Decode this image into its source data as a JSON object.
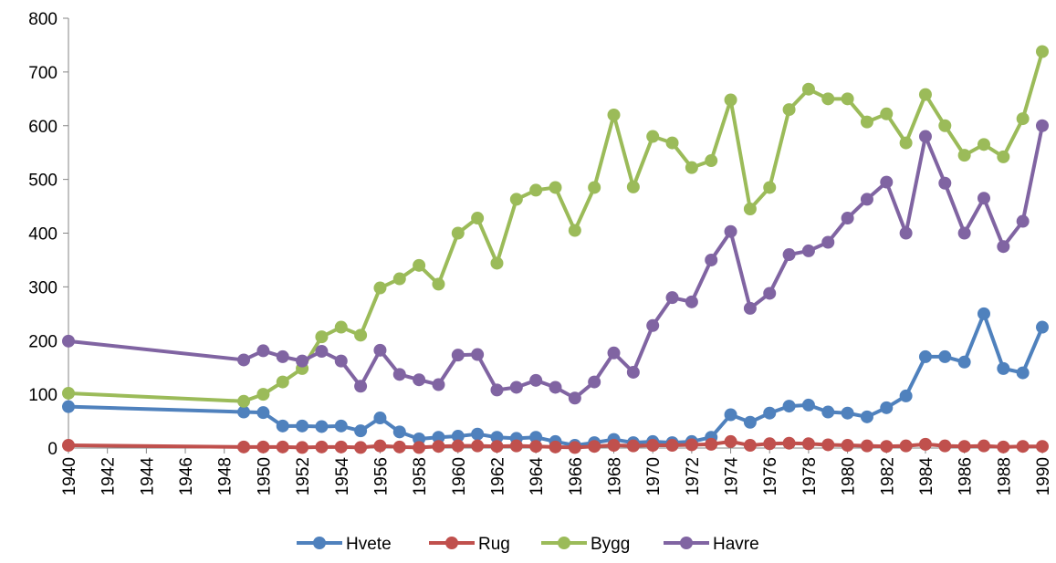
{
  "chart_data": {
    "type": "line",
    "x": [
      1940,
      1949,
      1950,
      1951,
      1952,
      1953,
      1954,
      1955,
      1956,
      1957,
      1958,
      1959,
      1960,
      1961,
      1962,
      1963,
      1964,
      1965,
      1966,
      1967,
      1968,
      1969,
      1970,
      1971,
      1972,
      1973,
      1974,
      1975,
      1976,
      1977,
      1978,
      1979,
      1980,
      1981,
      1982,
      1983,
      1984,
      1985,
      1986,
      1987,
      1988,
      1989,
      1990
    ],
    "series": [
      {
        "name": "Hvete",
        "color": "#4f81bd",
        "values": [
          77,
          67,
          66,
          41,
          41,
          40,
          41,
          32,
          56,
          30,
          17,
          20,
          22,
          26,
          20,
          18,
          20,
          12,
          5,
          10,
          16,
          10,
          12,
          10,
          12,
          20,
          62,
          48,
          65,
          78,
          80,
          67,
          65,
          58,
          75,
          97,
          170,
          170,
          160,
          250,
          148,
          140,
          225
        ]
      },
      {
        "name": "Rug",
        "color": "#c0504d",
        "values": [
          5,
          2,
          2,
          2,
          1,
          2,
          2,
          1,
          4,
          2,
          1,
          3,
          4,
          4,
          3,
          4,
          3,
          2,
          1,
          3,
          5,
          4,
          5,
          5,
          6,
          7,
          12,
          5,
          8,
          9,
          8,
          6,
          5,
          4,
          3,
          4,
          7,
          4,
          3,
          4,
          2,
          3,
          3
        ]
      },
      {
        "name": "Bygg",
        "color": "#9bbb59",
        "values": [
          102,
          87,
          100,
          123,
          148,
          207,
          225,
          210,
          298,
          315,
          340,
          305,
          400,
          428,
          344,
          463,
          480,
          485,
          405,
          485,
          620,
          486,
          580,
          568,
          522,
          535,
          648,
          445,
          485,
          630,
          668,
          650,
          650,
          607,
          622,
          568,
          658,
          600,
          545,
          565,
          542,
          613,
          738
        ]
      },
      {
        "name": "Havre",
        "color": "#8064a2",
        "values": [
          199,
          164,
          181,
          170,
          162,
          180,
          162,
          115,
          182,
          137,
          127,
          118,
          173,
          174,
          108,
          113,
          126,
          113,
          93,
          123,
          177,
          141,
          228,
          280,
          272,
          350,
          403,
          260,
          288,
          360,
          367,
          383,
          428,
          463,
          495,
          400,
          580,
          493,
          400,
          465,
          375,
          422,
          600
        ]
      }
    ],
    "xlim": [
      1940,
      1990
    ],
    "xticks": [
      1940,
      1942,
      1944,
      1946,
      1948,
      1950,
      1952,
      1954,
      1956,
      1958,
      1960,
      1962,
      1964,
      1966,
      1968,
      1970,
      1972,
      1974,
      1976,
      1978,
      1980,
      1982,
      1984,
      1986,
      1988,
      1990
    ],
    "ylim": [
      0,
      800
    ],
    "yticks": [
      0,
      100,
      200,
      300,
      400,
      500,
      600,
      700,
      800
    ],
    "legend": "bottom"
  }
}
